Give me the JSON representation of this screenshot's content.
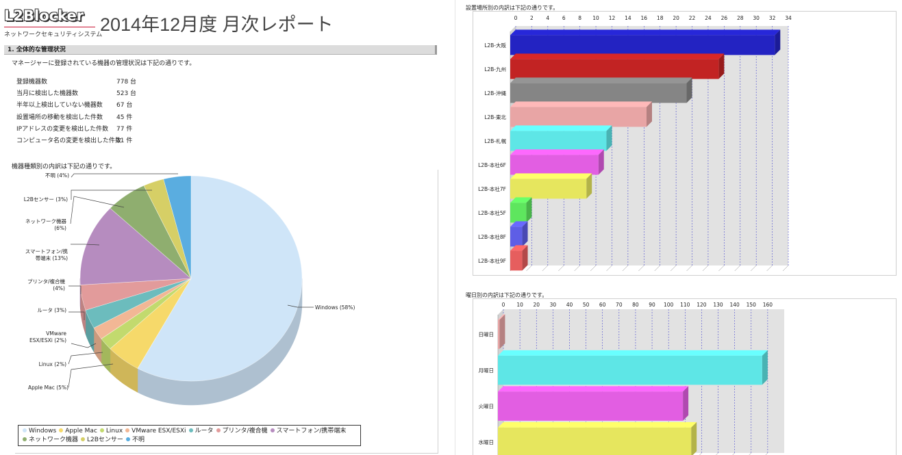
{
  "logo": {
    "name": "L2Blocker",
    "subtitle": "ネットワークセキュリティシステム"
  },
  "page_title": "2014年12月度 月次レポート",
  "section": {
    "title": "1. 全体的な管理状況",
    "intro": "マネージャーに登録されている機器の管理状況は下記の通りです。",
    "stats": [
      {
        "label": "登録機器数",
        "value": "778 台"
      },
      {
        "label": "当月に検出した機器数",
        "value": "523 台"
      },
      {
        "label": "半年以上検出していない機器数",
        "value": "67 台"
      },
      {
        "label": "設置場所の移動を検出した件数",
        "value": "45 件"
      },
      {
        "label": "IPアドレスの変更を検出した件数",
        "value": "77 件"
      },
      {
        "label": "コンピュータ名の変更を検出した件数",
        "value": "11 件"
      }
    ]
  },
  "colors": {
    "Windows": "#cfe5f8",
    "Apple Mac": "#f6d96a",
    "Linux": "#c2da6e",
    "VMware": "#f2b795",
    "ルータ": "#6cbcbd",
    "プリンタ": "#e29b9b",
    "スマートフォン": "#b68cbf",
    "ネットワーク機器": "#8fae6f",
    "L2Bセンサー": "#d6cf66",
    "不明": "#5aade0"
  },
  "chart_data": [
    {
      "type": "pie",
      "caption": "機器種類別の内訳は下記の通りです。",
      "slices": [
        {
          "label": "Windows",
          "name": "Windows (58%)",
          "value": 58,
          "color_key": "Windows"
        },
        {
          "label": "Apple Mac",
          "name": "Apple Mac (5%)",
          "value": 5,
          "color_key": "Apple Mac"
        },
        {
          "label": "Linux",
          "name": "Linux (2%)",
          "value": 2,
          "color_key": "Linux"
        },
        {
          "label": "VMware ESX/ESXi",
          "name": "VMware ESX/ESXi (2%)",
          "value": 2,
          "color_key": "VMware"
        },
        {
          "label": "ルータ",
          "name": "ルータ (3%)",
          "value": 3,
          "color_key": "ルータ"
        },
        {
          "label": "プリンタ/複合機",
          "name": "プリンタ/複合機 (4%)",
          "value": 4,
          "color_key": "プリンタ"
        },
        {
          "label": "スマートフォン/携帯端末",
          "name": "スマートフォン/携帯端末 (13%)",
          "value": 13,
          "color_key": "スマートフォン"
        },
        {
          "label": "ネットワーク機器",
          "name": "ネットワーク機器 (6%)",
          "value": 6,
          "color_key": "ネットワーク機器"
        },
        {
          "label": "L2Bセンサー",
          "name": "L2Bセンサー (3%)",
          "value": 3,
          "color_key": "L2Bセンサー"
        },
        {
          "label": "不明",
          "name": "不明 (4%)",
          "value": 4,
          "color_key": "不明"
        }
      ],
      "callouts": [
        {
          "text": [
            "Windows (58%)"
          ]
        },
        {
          "text": [
            "Apple Mac (5%)"
          ]
        },
        {
          "text": [
            "Linux (2%)"
          ]
        },
        {
          "text": [
            "VMware",
            "ESX/ESXi (2%)"
          ]
        },
        {
          "text": [
            "ルータ (3%)"
          ]
        },
        {
          "text": [
            "プリンタ/複合機",
            "(4%)"
          ]
        },
        {
          "text": [
            "スマートフォン/携",
            "帯端末 (13%)"
          ]
        },
        {
          "text": [
            "ネットワーク機器",
            "(6%)"
          ]
        },
        {
          "text": [
            "L2Bセンサー (3%)"
          ]
        },
        {
          "text": [
            "不明 (4%)"
          ]
        }
      ],
      "legend": [
        "Windows",
        "Apple Mac",
        "Linux",
        "VMware ESX/ESXi",
        "ルータ",
        "プリンタ/複合機",
        "スマートフォン/携帯端末",
        "ネットワーク機器",
        "L2Bセンサー",
        "不明"
      ]
    },
    {
      "type": "bar",
      "orientation": "horizontal",
      "caption": "設置場所別の内訳は下記の通りです。",
      "categories": [
        "L2B-大阪",
        "L2B-九州",
        "L2B-沖縄",
        "L2B-東北",
        "L2B-札幌",
        "L2B-本社6F",
        "L2B-本社7F",
        "L2B-本社5F",
        "L2B-本社8F",
        "L2B-本社9F"
      ],
      "values": [
        33,
        26,
        22,
        17,
        12,
        11,
        9.5,
        2,
        1.5,
        1.5
      ],
      "colors": [
        "#2323c2",
        "#c22323",
        "#858585",
        "#e8a5a5",
        "#5ee6e6",
        "#e25ee2",
        "#e6e65e",
        "#5ee65e",
        "#5e5ee6",
        "#e65e5e"
      ],
      "xlim": [
        0,
        34
      ],
      "ticks": [
        0,
        2,
        4,
        6,
        8,
        10,
        12,
        14,
        16,
        18,
        20,
        22,
        24,
        26,
        28,
        30,
        32,
        34
      ]
    },
    {
      "type": "bar",
      "orientation": "horizontal",
      "caption": "曜日別の内訳は下記の通りです。",
      "categories": [
        "日曜日",
        "月曜日",
        "火曜日",
        "水曜日"
      ],
      "values": [
        1,
        160,
        112,
        117
      ],
      "colors": [
        "#e8a5a5",
        "#5ee6e6",
        "#e25ee2",
        "#e6e65e"
      ],
      "xlim": [
        0,
        170
      ],
      "ticks": [
        0,
        10,
        20,
        30,
        40,
        50,
        60,
        70,
        80,
        90,
        100,
        110,
        120,
        130,
        140,
        150,
        160
      ]
    }
  ]
}
